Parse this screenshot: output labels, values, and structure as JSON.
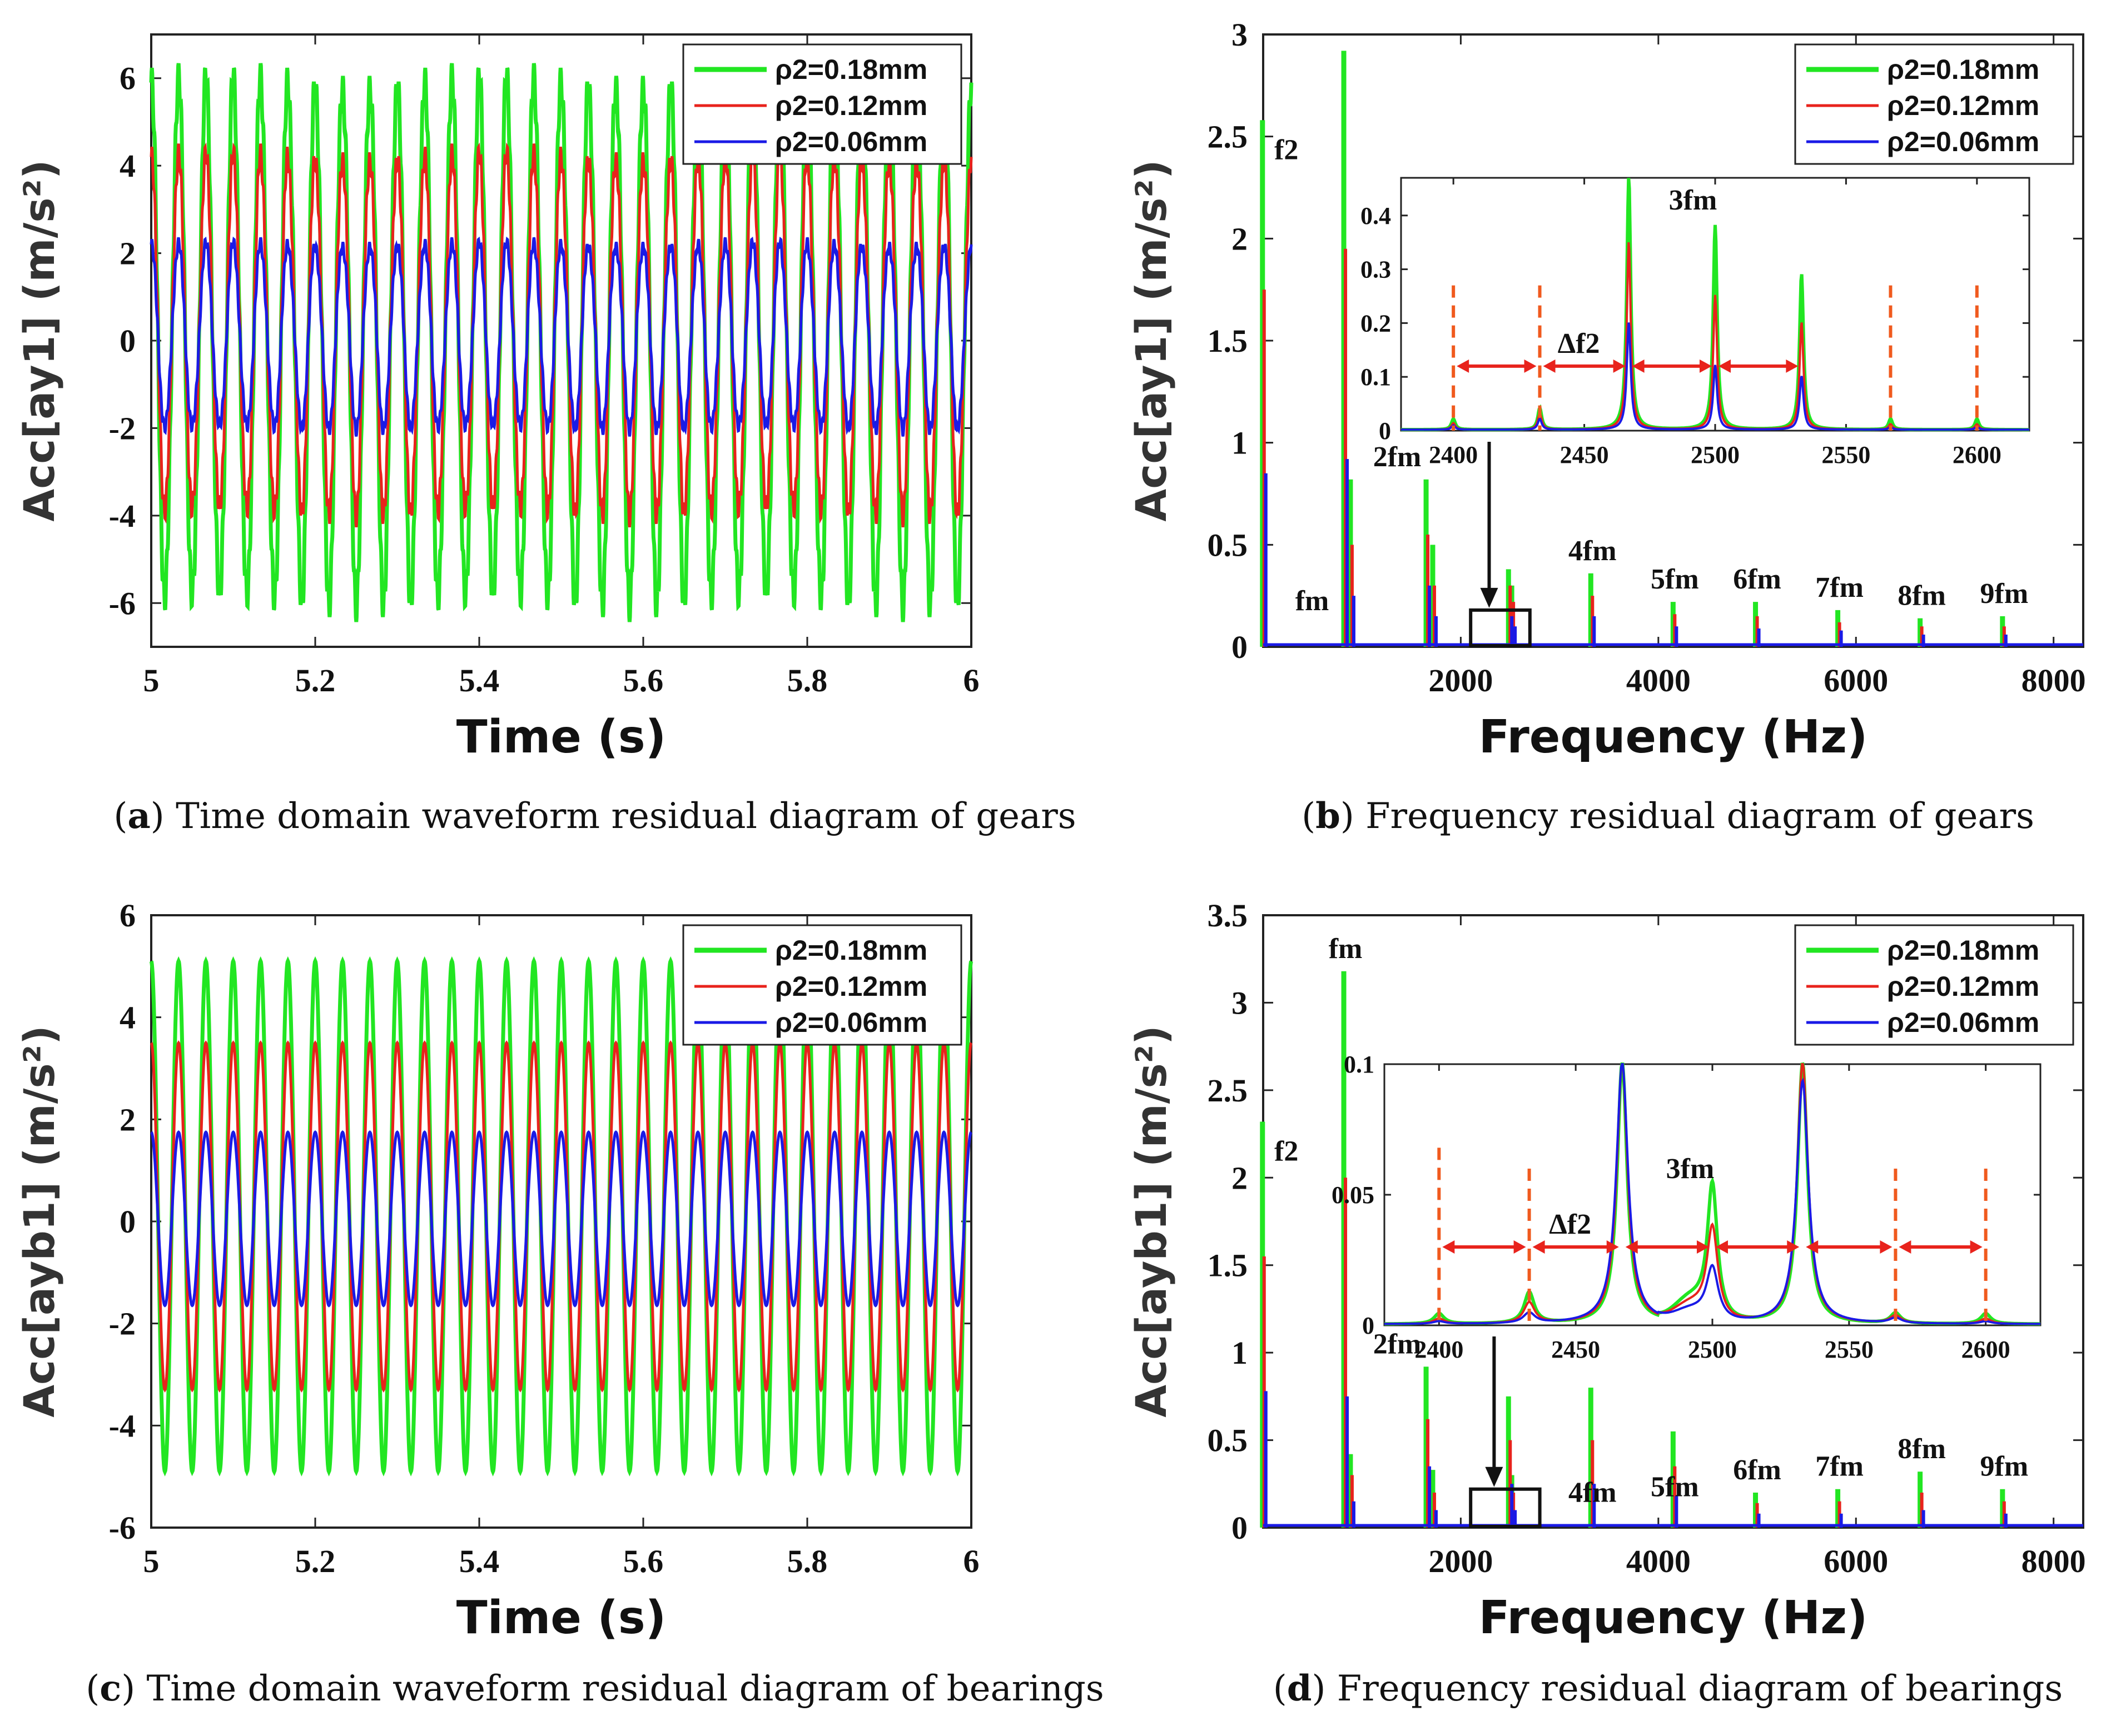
{
  "colors": {
    "s1": "#22e622",
    "s2": "#e8231c",
    "s3": "#1a1ae6",
    "marker": "#f05a1e",
    "arrow": "#e8231c"
  },
  "legend": [
    "ρ2=0.18mm",
    "ρ2=0.12mm",
    "ρ2=0.06mm"
  ],
  "chart_data": [
    {
      "id": "a",
      "type": "line",
      "caption_letter": "a",
      "caption": "Time domain waveform residual diagram of gears",
      "xlabel": "Time (s)",
      "ylabel": "Acc[ay1] (m/s²)",
      "xlim": [
        5,
        6
      ],
      "ylim": [
        -7,
        7
      ],
      "xticks": [
        "5",
        "5.2",
        "5.4",
        "5.6",
        "5.8",
        "6"
      ],
      "xtick_values": [
        5,
        5.2,
        5.4,
        5.6,
        5.8,
        6
      ],
      "yticks": [
        "-6",
        "-4",
        "-2",
        "0",
        "2",
        "4",
        "6"
      ],
      "ytick_values": [
        -6,
        -4,
        -2,
        0,
        2,
        4,
        6
      ],
      "cycles": 30,
      "series": [
        {
          "name": "ρ2=0.18mm",
          "max": 5.9,
          "min": -5.9
        },
        {
          "name": "ρ2=0.12mm",
          "max": 4.2,
          "min": -3.9
        },
        {
          "name": "ρ2=0.06mm",
          "max": 2.2,
          "min": -2.0
        }
      ]
    },
    {
      "id": "b",
      "type": "line",
      "caption_letter": "b",
      "caption": "Frequency residual diagram of gears",
      "xlabel": "Frequency (Hz)",
      "ylabel": "Acc[ay1] (m/s²)",
      "xlim": [
        0,
        8300
      ],
      "ylim": [
        0,
        3
      ],
      "xticks": [
        "2000",
        "4000",
        "6000",
        "8000"
      ],
      "xtick_values": [
        2000,
        4000,
        6000,
        8000
      ],
      "yticks": [
        "0",
        "0.5",
        "1",
        "1.5",
        "2",
        "2.5",
        "3"
      ],
      "ytick_values": [
        0,
        0.5,
        1,
        1.5,
        2,
        2.5,
        3
      ],
      "peaks": [
        {
          "label": "f2",
          "f": 10,
          "values": [
            2.58,
            1.75,
            0.85
          ]
        },
        {
          "label": "fm",
          "f": 833,
          "values": [
            2.92,
            1.95,
            0.92
          ]
        },
        {
          "label": "",
          "f": 900,
          "values": [
            0.82,
            0.5,
            0.25
          ]
        },
        {
          "label": "2fm",
          "f": 1666,
          "values": [
            0.82,
            0.55,
            0.3
          ]
        },
        {
          "label": "",
          "f": 1733,
          "values": [
            0.5,
            0.3,
            0.15
          ]
        },
        {
          "label": "",
          "f": 2500,
          "values": [
            0.38,
            0.3,
            0.15
          ]
        },
        {
          "label": "",
          "f": 2533,
          "values": [
            0.3,
            0.22,
            0.1
          ]
        },
        {
          "label": "4fm",
          "f": 3333,
          "values": [
            0.36,
            0.25,
            0.15
          ]
        },
        {
          "label": "5fm",
          "f": 4166,
          "values": [
            0.22,
            0.16,
            0.1
          ]
        },
        {
          "label": "6fm",
          "f": 5000,
          "values": [
            0.22,
            0.15,
            0.09
          ]
        },
        {
          "label": "7fm",
          "f": 5833,
          "values": [
            0.18,
            0.12,
            0.08
          ]
        },
        {
          "label": "8fm",
          "f": 6666,
          "values": [
            0.14,
            0.1,
            0.06
          ]
        },
        {
          "label": "9fm",
          "f": 7500,
          "values": [
            0.15,
            0.1,
            0.06
          ]
        }
      ],
      "inset": {
        "xlim": [
          2380,
          2620
        ],
        "ylim": [
          0,
          0.47
        ],
        "xticks": [
          "2400",
          "2450",
          "2500",
          "2550",
          "2600"
        ],
        "xtick_values": [
          2400,
          2450,
          2500,
          2550,
          2600
        ],
        "yticks": [
          "0",
          "0.1",
          "0.2",
          "0.3",
          "0.4"
        ],
        "ytick_values": [
          0,
          0.1,
          0.2,
          0.3,
          0.4
        ],
        "peaks": [
          {
            "f": 2400,
            "values": [
              0.02,
              0.012,
              0.008
            ]
          },
          {
            "f": 2433,
            "values": [
              0.04,
              0.03,
              0.02
            ]
          },
          {
            "f": 2467,
            "values": [
              0.47,
              0.35,
              0.2
            ]
          },
          {
            "f": 2500,
            "values": [
              0.38,
              0.25,
              0.12
            ]
          },
          {
            "f": 2533,
            "values": [
              0.29,
              0.2,
              0.1
            ]
          },
          {
            "f": 2567,
            "values": [
              0.02,
              0.01,
              0.005
            ]
          },
          {
            "f": 2600,
            "values": [
              0.02,
              0.01,
              0.005
            ]
          }
        ],
        "markers": [
          2400,
          2433,
          2567,
          2600
        ],
        "annotations": [
          "3fm",
          "Δf2"
        ]
      },
      "zoom_box": {
        "f": [
          2100,
          2700
        ],
        "a": [
          0,
          0.18
        ]
      }
    },
    {
      "id": "c",
      "type": "line",
      "caption_letter": "c",
      "caption": "Time domain waveform residual diagram of bearings",
      "xlabel": "Time (s)",
      "ylabel": "Acc[ayb1] (m/s²)",
      "xlim": [
        5,
        6
      ],
      "ylim": [
        -6,
        6
      ],
      "xticks": [
        "5",
        "5.2",
        "5.4",
        "5.6",
        "5.8",
        "6"
      ],
      "xtick_values": [
        5,
        5.2,
        5.4,
        5.6,
        5.8,
        6
      ],
      "yticks": [
        "-6",
        "-4",
        "-2",
        "0",
        "2",
        "4",
        "6"
      ],
      "ytick_values": [
        -6,
        -4,
        -2,
        0,
        2,
        4,
        6
      ],
      "cycles": 30,
      "series": [
        {
          "name": "ρ2=0.18mm",
          "max": 5.1,
          "min": -4.9
        },
        {
          "name": "ρ2=0.12mm",
          "max": 3.5,
          "min": -3.3
        },
        {
          "name": "ρ2=0.06mm",
          "max": 1.75,
          "min": -1.65
        }
      ]
    },
    {
      "id": "d",
      "type": "line",
      "caption_letter": "d",
      "caption": "Frequency residual diagram of bearings",
      "xlabel": "Frequency (Hz)",
      "ylabel": "Acc[ayb1] (m/s²)",
      "xlim": [
        0,
        8300
      ],
      "ylim": [
        0,
        3.5
      ],
      "xticks": [
        "2000",
        "4000",
        "6000",
        "8000"
      ],
      "xtick_values": [
        2000,
        4000,
        6000,
        8000
      ],
      "yticks": [
        "0",
        "0.5",
        "1",
        "1.5",
        "2",
        "2.5",
        "3",
        "3.5"
      ],
      "ytick_values": [
        0,
        0.5,
        1,
        1.5,
        2,
        2.5,
        3,
        3.5
      ],
      "peaks": [
        {
          "label": "f2",
          "f": 10,
          "values": [
            2.32,
            1.55,
            0.78
          ]
        },
        {
          "label": "fm",
          "f": 833,
          "values": [
            3.18,
            2.0,
            0.75
          ]
        },
        {
          "label": "",
          "f": 900,
          "values": [
            0.42,
            0.3,
            0.15
          ]
        },
        {
          "label": "2fm",
          "f": 1666,
          "values": [
            0.92,
            0.62,
            0.35
          ]
        },
        {
          "label": "",
          "f": 1733,
          "values": [
            0.33,
            0.2,
            0.1
          ]
        },
        {
          "label": "",
          "f": 2500,
          "values": [
            0.75,
            0.5,
            0.25
          ]
        },
        {
          "label": "",
          "f": 2533,
          "values": [
            0.3,
            0.2,
            0.1
          ]
        },
        {
          "label": "4fm",
          "f": 3333,
          "values": [
            0.8,
            0.5,
            0.25
          ]
        },
        {
          "label": "5fm",
          "f": 4166,
          "values": [
            0.55,
            0.35,
            0.18
          ]
        },
        {
          "label": "6fm",
          "f": 5000,
          "values": [
            0.2,
            0.14,
            0.08
          ]
        },
        {
          "label": "7fm",
          "f": 5833,
          "values": [
            0.22,
            0.15,
            0.08
          ]
        },
        {
          "label": "8fm",
          "f": 6666,
          "values": [
            0.32,
            0.2,
            0.1
          ]
        },
        {
          "label": "9fm",
          "f": 7500,
          "values": [
            0.22,
            0.15,
            0.08
          ]
        }
      ],
      "inset": {
        "xlim": [
          2380,
          2620
        ],
        "ylim": [
          0,
          0.1
        ],
        "xticks": [
          "2400",
          "2450",
          "2500",
          "2550",
          "2600"
        ],
        "xtick_values": [
          2400,
          2450,
          2500,
          2550,
          2600
        ],
        "yticks": [
          "0",
          "0.05",
          "0.1"
        ],
        "ytick_values": [
          0,
          0.05,
          0.1
        ],
        "peaks": [
          {
            "f": 2400,
            "values": [
              0.004,
              0.002,
              0.001
            ]
          },
          {
            "f": 2433,
            "values": [
              0.012,
              0.008,
              0.004
            ]
          },
          {
            "f": 2467,
            "values": [
              0.1,
              0.1,
              0.1
            ]
          },
          {
            "f": 2500,
            "values": [
              0.051,
              0.035,
              0.02
            ]
          },
          {
            "f": 2533,
            "values": [
              0.1,
              0.1,
              0.093
            ]
          },
          {
            "f": 2567,
            "values": [
              0.004,
              0.003,
              0.002
            ]
          },
          {
            "f": 2600,
            "values": [
              0.004,
              0.002,
              0.001
            ]
          }
        ],
        "markers": [
          2400,
          2433,
          2567,
          2600
        ],
        "annotations": [
          "3fm",
          "Δf2"
        ]
      },
      "zoom_box": {
        "f": [
          2100,
          2800
        ],
        "a": [
          0,
          0.22
        ]
      }
    }
  ]
}
